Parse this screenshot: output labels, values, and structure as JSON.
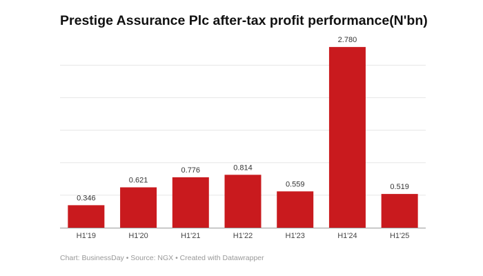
{
  "chart_data": {
    "type": "bar",
    "title": "Prestige Assurance Plc after-tax profit performance(N'bn)",
    "categories": [
      "H1'19",
      "H1'20",
      "H1'21",
      "H1'22",
      "H1'23",
      "H1'24",
      "H1'25"
    ],
    "values": [
      0.346,
      0.621,
      0.776,
      0.814,
      0.559,
      2.78,
      0.519
    ],
    "value_labels": [
      "0.346",
      "0.621",
      "0.776",
      "0.814",
      "0.559",
      "2.780",
      "0.519"
    ],
    "ylim": [
      0,
      3
    ],
    "grid": true,
    "bar_color": "#c91a1e",
    "credit": "Chart: BusinessDay • Source: NGX • Created with Datawrapper"
  }
}
